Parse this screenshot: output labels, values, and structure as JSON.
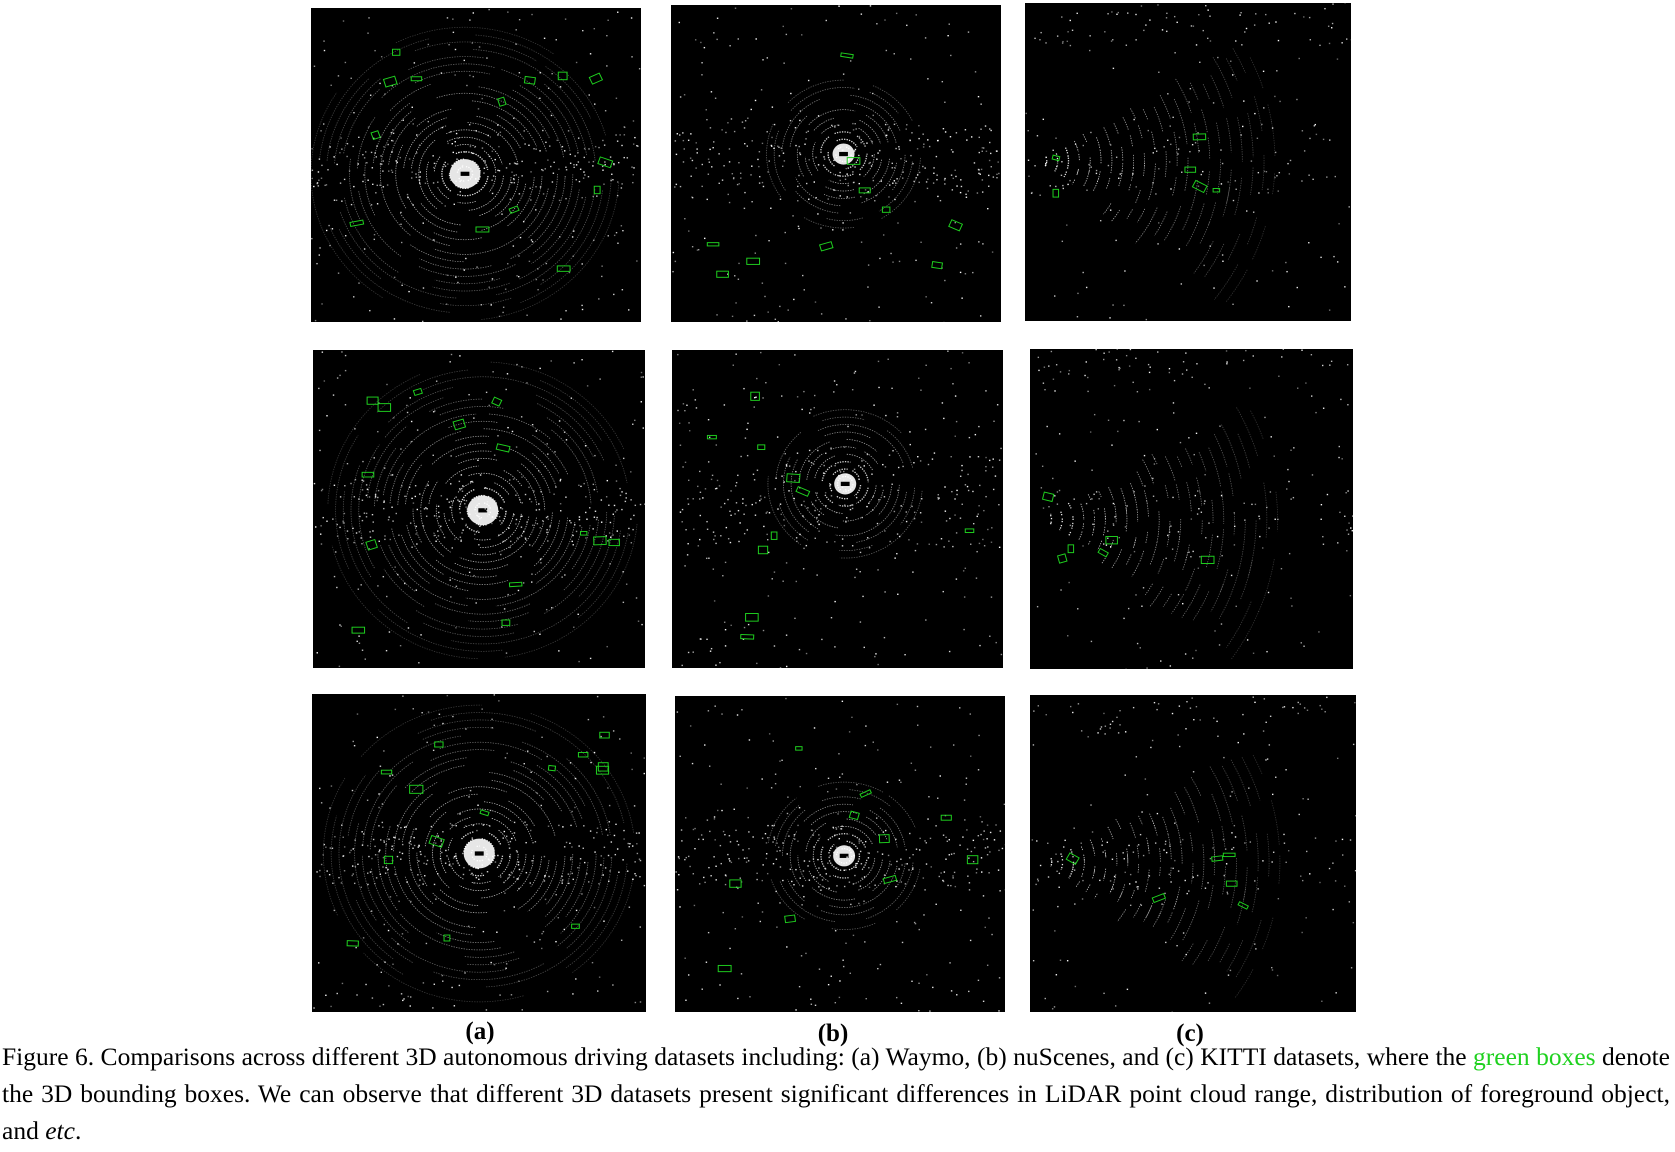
{
  "subfigure_labels": [
    "(a)",
    "(b)",
    "(c)"
  ],
  "caption": {
    "part1": "Figure 6.  Comparisons across different 3D autonomous driving datasets including: (a) Waymo, (b) nuScenes, and (c) KITTI datasets, where the ",
    "highlight": "green boxes",
    "part2": " denote the 3D bounding boxes. We can observe that different 3D datasets present significant differences in LiDAR point cloud range, distribution of foreground object, and ",
    "etc": "etc",
    "part3": "."
  },
  "colors": {
    "panel_bg": "#000000",
    "points": "#ffffff",
    "boxes": "#1fd11f"
  }
}
